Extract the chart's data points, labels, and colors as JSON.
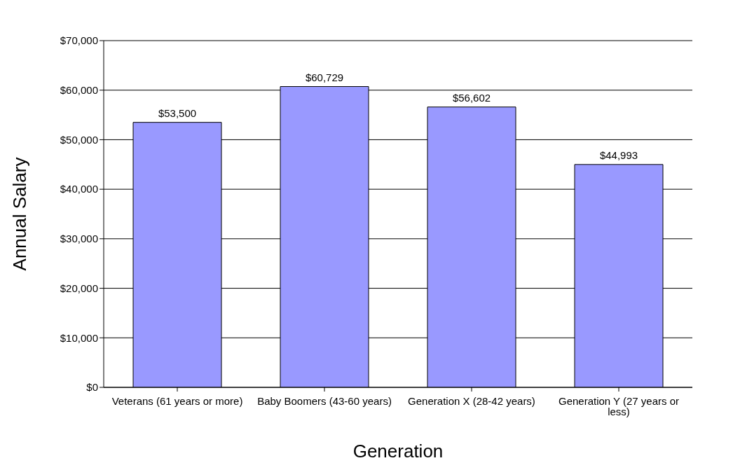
{
  "chart_data": {
    "type": "bar",
    "xlabel": "Generation",
    "ylabel": "Annual Salary",
    "categories": [
      "Veterans (61 years or more)",
      "Baby Boomers (43-60 years)",
      "Generation X (28-42 years)",
      "Generation Y (27 years or less)"
    ],
    "values": [
      53500,
      60729,
      56602,
      44993
    ],
    "value_labels": [
      "$53,500",
      "$60,729",
      "$56,602",
      "$44,993"
    ],
    "color": "#9999ff",
    "ylim": [
      0,
      70000
    ],
    "yticks": [
      {
        "value": 0,
        "label": "$0"
      },
      {
        "value": 10000,
        "label": "$10,000"
      },
      {
        "value": 20000,
        "label": "$20,000"
      },
      {
        "value": 30000,
        "label": "$30,000"
      },
      {
        "value": 40000,
        "label": "$40,000"
      },
      {
        "value": 50000,
        "label": "$50,000"
      },
      {
        "value": 60000,
        "label": "$60,000"
      },
      {
        "value": 70000,
        "label": "$70,000"
      }
    ],
    "grid": "y"
  }
}
